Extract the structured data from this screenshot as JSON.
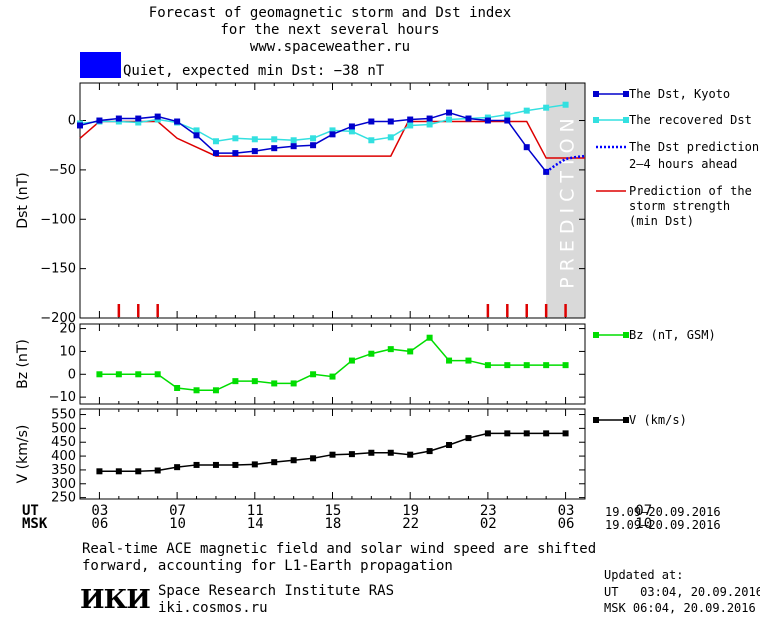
{
  "header": {
    "title_line1": "Forecast of geomagnetic storm and Dst index",
    "title_line2": "for the next several hours",
    "site": "www.spaceweather.ru"
  },
  "status": {
    "text": "Quiet, expected min Dst: −38 nT",
    "color": "#0000ff"
  },
  "legend": {
    "dst_kyoto": "The Dst, Kyoto",
    "dst_recovered": "The recovered Dst",
    "dst_prediction_line1": "The Dst prediction",
    "dst_prediction_line2": "2–4 hours ahead",
    "storm_line1": "Prediction of the",
    "storm_line2": "storm strength",
    "storm_line3": "(min Dst)",
    "bz": "Bz (nT, GSM)",
    "v": "V (km/s)"
  },
  "prediction_label": "PREDICTION",
  "time_axis": {
    "ut_label": "UT",
    "msk_label": "MSK",
    "ut_ticks": [
      "03",
      "07",
      "11",
      "15",
      "19",
      "23",
      "03",
      "07"
    ],
    "msk_ticks": [
      "06",
      "10",
      "14",
      "18",
      "22",
      "02",
      "06",
      "10"
    ],
    "date_range_ut": "19.09–20.09.2016",
    "date_range_msk": "19.09–20.09.2016"
  },
  "footer": {
    "note_line1": "Real-time ACE magnetic field and solar wind speed are shifted",
    "note_line2": "forward, accounting for L1-Earth propagation",
    "institute": "Space Research Institute RAS",
    "institute_site": "iki.cosmos.ru",
    "logo_text": "ИКИ",
    "updated_label": "Updated at:",
    "updated_ut": "UT   03:04, 20.09.2016",
    "updated_msk": "MSK 06:04, 20.09.2016"
  },
  "colors": {
    "kyoto": "#0000cc",
    "recovered": "#33e0e0",
    "prediction": "#0000ff",
    "storm": "#dd0000",
    "bz": "#00dd00",
    "v": "#000000",
    "prediction_zone": "#d9d9d9"
  },
  "chart_data": [
    {
      "type": "line",
      "ylabel": "Dst (nT)",
      "ylim": [
        -200,
        38
      ],
      "yticks": [
        0,
        -50,
        -100,
        -150,
        -200
      ],
      "x_hours_ut": [
        2,
        28
      ],
      "prediction_from_hour": 26.0,
      "series": [
        {
          "name": "The Dst, Kyoto",
          "x": [
            2,
            3,
            4,
            5,
            6,
            7,
            8,
            9,
            10,
            11,
            12,
            13,
            14,
            15,
            16,
            17,
            18,
            19,
            20,
            21,
            22,
            23,
            24,
            25,
            26
          ],
          "y": [
            -5,
            0,
            2,
            2,
            4,
            -1,
            -15,
            -33,
            -33,
            -31,
            -28,
            -26,
            -25,
            -14,
            -6,
            -1,
            -1,
            1,
            2,
            8,
            2,
            0,
            0,
            -27,
            -52
          ]
        },
        {
          "name": "The recovered Dst",
          "x": [
            2,
            3,
            4,
            5,
            6,
            7,
            8,
            9,
            10,
            11,
            12,
            13,
            14,
            15,
            16,
            17,
            18,
            19,
            20,
            21,
            22,
            23,
            24,
            25,
            26,
            27
          ],
          "y": [
            -3,
            -1,
            -1,
            -2,
            1,
            -2,
            -10,
            -21,
            -18,
            -19,
            -19,
            -20,
            -18,
            -10,
            -11,
            -20,
            -17,
            -5,
            -4,
            1,
            2,
            3,
            6,
            10,
            13,
            16
          ]
        },
        {
          "name": "The Dst prediction 2–4 hours ahead",
          "x": [
            26,
            26.5,
            27,
            27.5,
            28
          ],
          "y": [
            -52,
            -45,
            -39,
            -37,
            -36
          ]
        },
        {
          "name": "Prediction of the storm strength (min Dst)",
          "x": [
            2,
            3,
            5,
            6,
            7,
            9,
            18,
            18.9,
            24,
            25,
            26,
            28
          ],
          "y": [
            -18,
            -1,
            -1,
            -1,
            -18,
            -36,
            -36,
            -1,
            -1,
            -1,
            -38,
            -38
          ]
        }
      ],
      "storm_markers_hours_ut": [
        4,
        5,
        6,
        23,
        24,
        25,
        26,
        27
      ]
    },
    {
      "type": "line",
      "ylabel": "Bz (nT)",
      "ylim": [
        -13,
        22
      ],
      "yticks": [
        20,
        10,
        0,
        -10
      ],
      "series": [
        {
          "name": "Bz (nT, GSM)",
          "x": [
            3,
            4,
            5,
            6,
            7,
            8,
            9,
            10,
            11,
            12,
            13,
            14,
            15,
            16,
            17,
            18,
            19,
            20,
            21,
            22,
            23,
            24,
            25,
            26,
            27
          ],
          "y": [
            0,
            0,
            0,
            0,
            -6,
            -7,
            -7,
            -3,
            -3,
            -4,
            -4,
            0,
            -1,
            6,
            9,
            11,
            10,
            16,
            6,
            6,
            4,
            4,
            4,
            4,
            4
          ]
        }
      ]
    },
    {
      "type": "line",
      "ylabel": "V (km/s)",
      "ylim": [
        245,
        570
      ],
      "yticks": [
        550,
        500,
        450,
        400,
        350,
        300,
        250
      ],
      "series": [
        {
          "name": "V (km/s)",
          "x": [
            3,
            4,
            5,
            6,
            7,
            8,
            9,
            10,
            11,
            12,
            13,
            14,
            15,
            16,
            17,
            18,
            19,
            20,
            21,
            22,
            23,
            24,
            25,
            26,
            27
          ],
          "y": [
            345,
            345,
            345,
            348,
            360,
            368,
            368,
            368,
            370,
            378,
            385,
            392,
            405,
            407,
            412,
            412,
            405,
            418,
            440,
            465,
            482,
            482,
            482,
            482,
            482
          ]
        }
      ]
    }
  ]
}
